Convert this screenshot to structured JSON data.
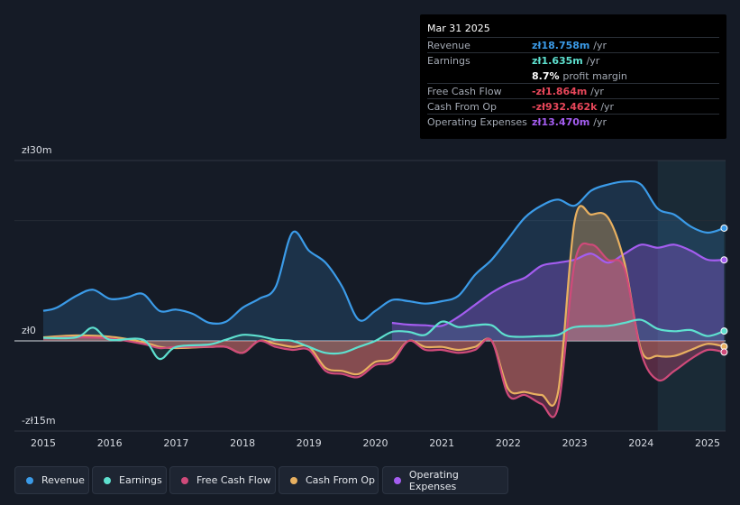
{
  "tooltip": {
    "date": "Mar 31 2025",
    "rows": [
      {
        "label": "Revenue",
        "value": "zł18.758m",
        "unit": "/yr",
        "color": "#3b9be8"
      },
      {
        "label": "Earnings",
        "value": "zł1.635m",
        "unit": "/yr",
        "color": "#5ee0cf"
      },
      {
        "label": "",
        "value": "8.7%",
        "unit": "profit margin",
        "color": "#ffffff"
      },
      {
        "label": "Free Cash Flow",
        "value": "-zł1.864m",
        "unit": "/yr",
        "color": "#e8475a"
      },
      {
        "label": "Cash From Op",
        "value": "-zł932.462k",
        "unit": "/yr",
        "color": "#e8475a"
      },
      {
        "label": "Operating Expenses",
        "value": "zł13.470m",
        "unit": "/yr",
        "color": "#a45df0"
      }
    ]
  },
  "legend": [
    {
      "label": "Revenue",
      "color": "#3b9be8"
    },
    {
      "label": "Earnings",
      "color": "#5ee0cf"
    },
    {
      "label": "Free Cash Flow",
      "color": "#cf4a7a"
    },
    {
      "label": "Cash From Op",
      "color": "#e8b060"
    },
    {
      "label": "Operating Expenses",
      "color": "#a45df0"
    }
  ],
  "chart_data": {
    "type": "area",
    "title": "",
    "xlabel": "",
    "ylabel": "",
    "ylim": [
      -15,
      30
    ],
    "y_ticks": [
      {
        "value": 30,
        "label": "zł30m"
      },
      {
        "value": 0,
        "label": "zł0"
      },
      {
        "value": -15,
        "label": "-zł15m"
      }
    ],
    "x_ticks": [
      2015,
      2016,
      2017,
      2018,
      2019,
      2020,
      2021,
      2022,
      2023,
      2024,
      2025
    ],
    "xlim": [
      2014.95,
      2025.25
    ],
    "forecast_start": 2024.25,
    "series": [
      {
        "name": "Revenue",
        "color": "#3b9be8",
        "x": [
          2015.0,
          2015.2,
          2015.5,
          2015.75,
          2016.0,
          2016.25,
          2016.5,
          2016.75,
          2017.0,
          2017.25,
          2017.5,
          2017.75,
          2018.0,
          2018.25,
          2018.5,
          2018.75,
          2019.0,
          2019.25,
          2019.5,
          2019.75,
          2020.0,
          2020.25,
          2020.5,
          2020.75,
          2021.0,
          2021.25,
          2021.5,
          2021.75,
          2022.0,
          2022.25,
          2022.5,
          2022.75,
          2023.0,
          2023.25,
          2023.5,
          2023.75,
          2024.0,
          2024.25,
          2024.5,
          2024.75,
          2025.0,
          2025.25
        ],
        "values": [
          5.0,
          5.5,
          7.5,
          8.5,
          7.0,
          7.2,
          7.8,
          5.0,
          5.2,
          4.5,
          3.0,
          3.2,
          5.5,
          7.0,
          9.0,
          18.0,
          15.0,
          13.0,
          9.0,
          3.5,
          5.0,
          6.8,
          6.6,
          6.2,
          6.6,
          7.5,
          11.0,
          13.5,
          17.0,
          20.5,
          22.5,
          23.5,
          22.5,
          25.0,
          26.0,
          26.5,
          26.0,
          22.0,
          21.0,
          19.0,
          18.0,
          18.758
        ]
      },
      {
        "name": "Earnings",
        "color": "#5ee0cf",
        "x": [
          2015.0,
          2015.5,
          2015.75,
          2016.0,
          2016.5,
          2016.75,
          2017.0,
          2017.5,
          2017.75,
          2018.0,
          2018.25,
          2018.5,
          2018.75,
          2019.0,
          2019.25,
          2019.5,
          2019.75,
          2020.0,
          2020.25,
          2020.5,
          2020.75,
          2021.0,
          2021.25,
          2021.5,
          2021.75,
          2022.0,
          2022.5,
          2022.75,
          2023.0,
          2023.5,
          2023.75,
          2024.0,
          2024.25,
          2024.5,
          2024.75,
          2025.0,
          2025.25
        ],
        "values": [
          0.5,
          0.6,
          2.2,
          0.2,
          0.2,
          -3.0,
          -1.0,
          -0.6,
          0.2,
          1.0,
          0.8,
          0.2,
          0.0,
          -1.0,
          -2.0,
          -2.0,
          -1.0,
          0.0,
          1.5,
          1.5,
          1.0,
          3.2,
          2.3,
          2.6,
          2.6,
          0.8,
          0.8,
          1.0,
          2.3,
          2.5,
          3.0,
          3.5,
          2.0,
          1.6,
          1.8,
          0.8,
          1.635
        ]
      },
      {
        "name": "Free Cash Flow",
        "color": "#cf4a7a",
        "x": [
          2015.0,
          2015.5,
          2016.0,
          2016.5,
          2016.75,
          2017.0,
          2017.5,
          2017.75,
          2018.0,
          2018.25,
          2018.5,
          2018.75,
          2019.0,
          2019.25,
          2019.5,
          2019.75,
          2020.0,
          2020.25,
          2020.5,
          2020.75,
          2021.0,
          2021.25,
          2021.5,
          2021.75,
          2022.0,
          2022.25,
          2022.5,
          2022.75,
          2023.0,
          2023.25,
          2023.5,
          2023.75,
          2024.0,
          2024.25,
          2024.5,
          2024.75,
          2025.0,
          2025.25
        ],
        "values": [
          0.4,
          0.6,
          0.4,
          -0.5,
          -1.2,
          -1.0,
          -1.0,
          -1.0,
          -2.0,
          0.0,
          -1.0,
          -1.5,
          -1.5,
          -5.0,
          -5.5,
          -6.0,
          -4.0,
          -3.5,
          0.0,
          -1.5,
          -1.5,
          -2.0,
          -1.5,
          0.0,
          -9.0,
          -9.0,
          -10.5,
          -11.0,
          13.0,
          16.0,
          13.5,
          12.0,
          -2.0,
          -6.5,
          -5.0,
          -3.0,
          -1.5,
          -1.864
        ]
      },
      {
        "name": "Cash From Op",
        "color": "#e8b060",
        "x": [
          2015.0,
          2015.5,
          2016.0,
          2016.5,
          2016.75,
          2017.0,
          2017.5,
          2017.75,
          2018.0,
          2018.25,
          2018.5,
          2018.75,
          2019.0,
          2019.25,
          2019.5,
          2019.75,
          2020.0,
          2020.25,
          2020.5,
          2020.75,
          2021.0,
          2021.25,
          2021.5,
          2021.75,
          2022.0,
          2022.25,
          2022.5,
          2022.75,
          2023.0,
          2023.25,
          2023.5,
          2023.75,
          2024.0,
          2024.25,
          2024.5,
          2024.75,
          2025.0,
          2025.25
        ],
        "values": [
          0.6,
          0.9,
          0.7,
          -0.2,
          -1.0,
          -1.2,
          -1.0,
          -1.0,
          -2.0,
          0.0,
          -0.5,
          -1.0,
          -1.0,
          -4.5,
          -5.0,
          -5.5,
          -3.5,
          -3.0,
          0.0,
          -1.0,
          -1.0,
          -1.5,
          -1.0,
          0.0,
          -8.0,
          -8.5,
          -9.0,
          -8.5,
          20.0,
          21.0,
          20.5,
          13.0,
          -1.5,
          -2.5,
          -2.5,
          -1.5,
          -0.5,
          -0.932
        ]
      },
      {
        "name": "Operating Expenses",
        "color": "#a45df0",
        "x": [
          2020.25,
          2020.5,
          2020.75,
          2021.0,
          2021.25,
          2021.5,
          2021.75,
          2022.0,
          2022.25,
          2022.5,
          2022.75,
          2023.0,
          2023.25,
          2023.5,
          2023.75,
          2024.0,
          2024.25,
          2024.5,
          2024.75,
          2025.0,
          2025.25
        ],
        "values": [
          3.0,
          2.7,
          2.6,
          2.5,
          4.0,
          6.0,
          8.0,
          9.5,
          10.5,
          12.5,
          13.0,
          13.5,
          14.5,
          13.0,
          14.5,
          16.0,
          15.5,
          16.0,
          15.0,
          13.5,
          13.47
        ]
      }
    ]
  }
}
